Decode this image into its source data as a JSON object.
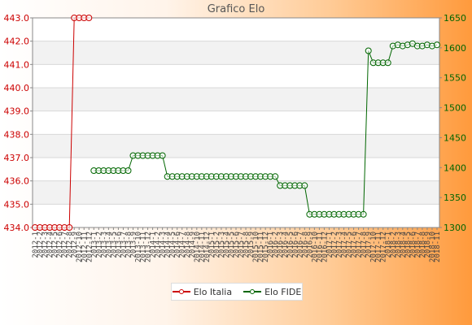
{
  "chart_data": {
    "type": "line",
    "title": "Grafico Elo",
    "y_left": {
      "ylim": [
        434.0,
        443.0
      ],
      "ticks": [
        "434.0",
        "435.0",
        "436.0",
        "437.0",
        "438.0",
        "439.0",
        "440.0",
        "441.0",
        "442.0",
        "443.0"
      ],
      "color": "#cc0000"
    },
    "y_right": {
      "ylim": [
        1300,
        1650
      ],
      "ticks": [
        "1300",
        "1350",
        "1400",
        "1450",
        "1500",
        "1550",
        "1600",
        "1650"
      ],
      "color": "#006600"
    },
    "x_count": 83,
    "x_tick_labels": [
      "2012-1",
      "2012-2",
      "2012-3",
      "2012-4",
      "2012-5",
      "2012-6",
      "2012-7",
      "2012-8",
      "2012-9",
      "2012-10",
      "2012-11",
      "2012-12",
      "2013-1",
      "2013-2",
      "2013-3",
      "2013-4",
      "2013-5",
      "2013-6",
      "2013-7",
      "2013-8",
      "2013-9",
      "2013-10",
      "2013-11",
      "2013-12",
      "2014-1",
      "2014-2",
      "2014-3",
      "2014-4",
      "2014-5",
      "2014-6",
      "2014-7",
      "2014-8",
      "2014-9",
      "2014-10",
      "2014-11",
      "2014-12",
      "2015-1",
      "2015-2",
      "2015-3",
      "2015-4",
      "2015-5",
      "2015-6",
      "2015-7",
      "2015-8",
      "2015-9",
      "2015-10",
      "2015-11",
      "2015-12",
      "2016-1",
      "2016-2",
      "2016-3",
      "2016-4",
      "2016-5",
      "2016-6",
      "2016-7",
      "2016-8",
      "2016-9",
      "2016-10",
      "2016-11",
      "2016-12",
      "2017-1",
      "2017-2",
      "2017-3",
      "2017-4",
      "2017-5",
      "2017-6",
      "2017-7",
      "2017-8",
      "2017-9",
      "2017-10",
      "2017-11",
      "2017-12",
      "2018-1",
      "2018-2",
      "2018-3",
      "2018-4",
      "2018-5",
      "2018-6",
      "2018-7",
      "2018-8",
      "2018-9",
      "2018-10",
      "2018-11"
    ],
    "series": [
      {
        "name": "Elo Italia",
        "axis": "left",
        "color": "#cc0000",
        "x_index": [
          0,
          1,
          2,
          3,
          4,
          5,
          6,
          7,
          8,
          9,
          10,
          11
        ],
        "values": [
          434.0,
          434.0,
          434.0,
          434.0,
          434.0,
          434.0,
          434.0,
          434.0,
          443.0,
          443.0,
          443.0,
          443.0
        ]
      },
      {
        "name": "Elo FIDE",
        "axis": "right",
        "color": "#006600",
        "x_index": [
          12,
          13,
          14,
          15,
          16,
          17,
          18,
          19,
          20,
          21,
          22,
          23,
          24,
          25,
          26,
          27,
          28,
          29,
          30,
          31,
          32,
          33,
          34,
          35,
          36,
          37,
          38,
          39,
          40,
          41,
          42,
          43,
          44,
          45,
          46,
          47,
          48,
          49,
          50,
          51,
          52,
          53,
          54,
          55,
          56,
          57,
          58,
          59,
          60,
          61,
          62,
          63,
          64,
          65,
          66,
          67,
          68,
          69,
          70,
          71,
          72,
          73,
          74,
          75,
          76,
          77,
          78,
          79,
          80,
          81,
          82
        ],
        "values": [
          1395,
          1395,
          1395,
          1395,
          1395,
          1395,
          1395,
          1395,
          1420,
          1420,
          1420,
          1420,
          1420,
          1420,
          1420,
          1385,
          1385,
          1385,
          1385,
          1385,
          1385,
          1385,
          1385,
          1385,
          1385,
          1385,
          1385,
          1385,
          1385,
          1385,
          1385,
          1385,
          1385,
          1385,
          1385,
          1385,
          1385,
          1385,
          1370,
          1370,
          1370,
          1370,
          1370,
          1370,
          1322,
          1322,
          1322,
          1322,
          1322,
          1322,
          1322,
          1322,
          1322,
          1322,
          1322,
          1322,
          1595,
          1575,
          1575,
          1575,
          1575,
          1603,
          1605,
          1603,
          1605,
          1607,
          1603,
          1603,
          1605,
          1603,
          1605
        ]
      }
    ],
    "legend_position": "bottom",
    "grid": true
  }
}
